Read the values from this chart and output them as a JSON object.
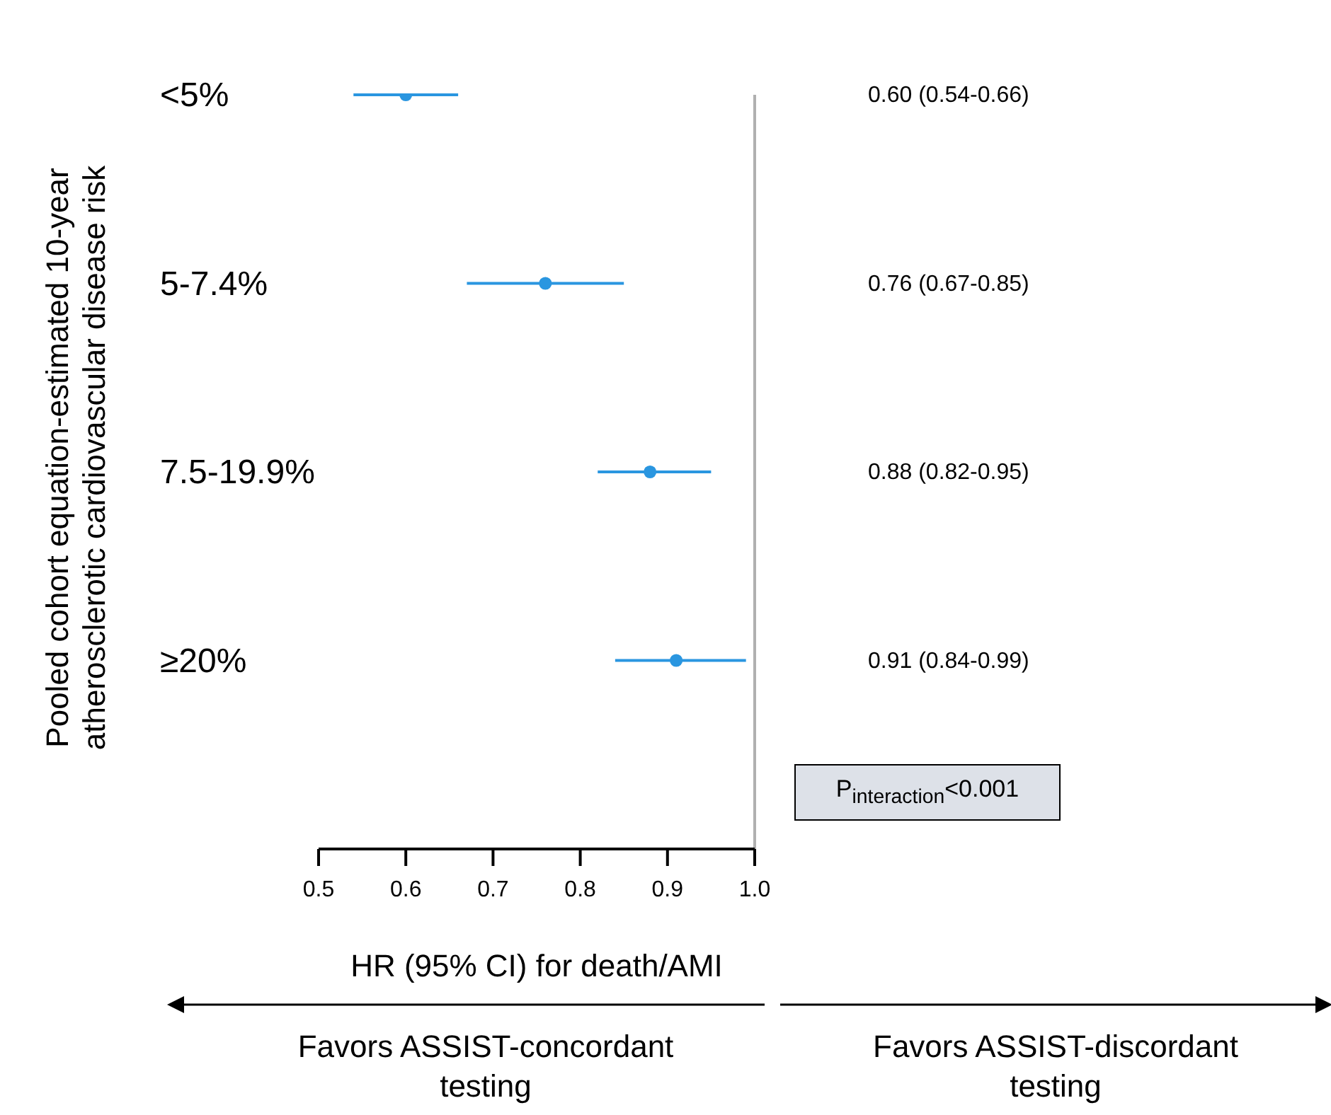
{
  "chart_data": {
    "type": "scatter",
    "orientation": "horizontal",
    "ylabel": "Pooled cohort equation-estimated 10-year\natherosclerotic cardiovascular disease risk",
    "xlabel": "HR (95% CI) for death/AMI",
    "categories": [
      "<5%",
      "5-7.4%",
      "7.5-19.9%",
      "≥20%"
    ],
    "values": [
      0.6,
      0.76,
      0.88,
      0.91
    ],
    "errors": [
      [
        0.54,
        0.66
      ],
      [
        0.67,
        0.85
      ],
      [
        0.82,
        0.95
      ],
      [
        0.84,
        0.99
      ]
    ],
    "value_labels": [
      "0.60 (0.54-0.66)",
      "0.76 (0.67-0.85)",
      "0.88 (0.82-0.95)",
      "0.91 (0.84-0.99)"
    ],
    "color": "#2a96e0",
    "marker": "circle",
    "xlim": [
      0.5,
      1.0
    ],
    "xticks": [
      0.5,
      0.6,
      0.7,
      0.8,
      0.9,
      {
        "value": 1.0,
        "label": "1.0"
      }
    ],
    "ref_lines": [
      {
        "axis": "x",
        "value": 1.0,
        "color": "#b0b0b0"
      }
    ],
    "annotations": [
      "P$_{interaction}$<0.001",
      "Favors ASSIST-concordant\ntesting",
      "Favors ASSIST-discordant\ntesting"
    ]
  }
}
